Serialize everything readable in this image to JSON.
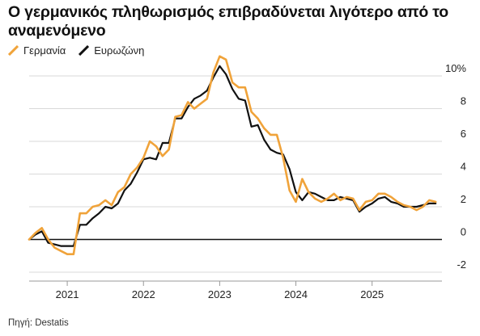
{
  "title": "Ο γερμανικός πληθωρισμός επιβραδύνεται λιγότερο από το αναμενόμενο",
  "source": "Πηγή: Destatis",
  "chart_data": {
    "type": "line",
    "title": "Ο γερμανικός πληθωρισμός επιβραδύνεται λιγότερο από το αναμενόμενο",
    "xlabel": "",
    "ylabel": "",
    "ylim": [
      -2,
      10
    ],
    "yticks": [
      -2,
      0,
      2,
      4,
      6,
      8,
      10
    ],
    "ytick_labels": [
      "-2",
      "0",
      "2",
      "4",
      "6",
      "8",
      "10%"
    ],
    "xlim": [
      "2020-07",
      "2025-12"
    ],
    "xtick_labels": [
      "2021",
      "2022",
      "2023",
      "2024",
      "2025"
    ],
    "grid": true,
    "legend_position": "top-left",
    "series": [
      {
        "name": "Γερμανία",
        "color": "#f0a33a",
        "points": [
          [
            "2020-07",
            0.0
          ],
          [
            "2020-08",
            0.4
          ],
          [
            "2020-09",
            0.7
          ],
          [
            "2020-10",
            0.0
          ],
          [
            "2020-11",
            -0.5
          ],
          [
            "2020-12",
            -0.7
          ],
          [
            "2021-01",
            -0.9
          ],
          [
            "2021-02",
            -0.9
          ],
          [
            "2021-03",
            1.6
          ],
          [
            "2021-04",
            1.6
          ],
          [
            "2021-05",
            2.0
          ],
          [
            "2021-06",
            2.1
          ],
          [
            "2021-07",
            2.4
          ],
          [
            "2021-08",
            2.1
          ],
          [
            "2021-09",
            2.9
          ],
          [
            "2021-10",
            3.2
          ],
          [
            "2021-11",
            4.0
          ],
          [
            "2021-12",
            4.4
          ],
          [
            "2022-01",
            5.0
          ],
          [
            "2022-02",
            6.0
          ],
          [
            "2022-03",
            5.7
          ],
          [
            "2022-04",
            5.1
          ],
          [
            "2022-05",
            5.5
          ],
          [
            "2022-06",
            7.5
          ],
          [
            "2022-07",
            7.6
          ],
          [
            "2022-08",
            8.4
          ],
          [
            "2022-09",
            8.0
          ],
          [
            "2022-10",
            8.3
          ],
          [
            "2022-11",
            8.6
          ],
          [
            "2022-12",
            10.2
          ],
          [
            "2023-01",
            11.2
          ],
          [
            "2023-02",
            11.0
          ],
          [
            "2023-03",
            9.6
          ],
          [
            "2023-04",
            9.3
          ],
          [
            "2023-05",
            9.3
          ],
          [
            "2023-06",
            7.8
          ],
          [
            "2023-07",
            7.4
          ],
          [
            "2023-08",
            6.8
          ],
          [
            "2023-09",
            6.4
          ],
          [
            "2023-10",
            6.4
          ],
          [
            "2023-11",
            5.0
          ],
          [
            "2023-12",
            3.0
          ],
          [
            "2024-01",
            2.3
          ],
          [
            "2024-02",
            3.7
          ],
          [
            "2024-03",
            2.9
          ],
          [
            "2024-04",
            2.5
          ],
          [
            "2024-05",
            2.3
          ],
          [
            "2024-06",
            2.5
          ],
          [
            "2024-07",
            2.8
          ],
          [
            "2024-08",
            2.4
          ],
          [
            "2024-09",
            2.6
          ],
          [
            "2024-10",
            2.5
          ],
          [
            "2024-11",
            1.8
          ],
          [
            "2024-12",
            2.3
          ],
          [
            "2025-01",
            2.4
          ],
          [
            "2025-02",
            2.8
          ],
          [
            "2025-03",
            2.8
          ],
          [
            "2025-04",
            2.6
          ],
          [
            "2025-05",
            2.3
          ],
          [
            "2025-06",
            2.1
          ],
          [
            "2025-07",
            2.0
          ],
          [
            "2025-08",
            1.8
          ],
          [
            "2025-09",
            2.0
          ],
          [
            "2025-10",
            2.4
          ],
          [
            "2025-11",
            2.3
          ]
        ]
      },
      {
        "name": "Ευρωζώνη",
        "color": "#111111",
        "points": [
          [
            "2020-07",
            0.0
          ],
          [
            "2020-08",
            0.3
          ],
          [
            "2020-09",
            0.5
          ],
          [
            "2020-10",
            -0.2
          ],
          [
            "2020-11",
            -0.3
          ],
          [
            "2020-12",
            -0.4
          ],
          [
            "2021-01",
            -0.4
          ],
          [
            "2021-02",
            -0.4
          ],
          [
            "2021-03",
            0.9
          ],
          [
            "2021-04",
            0.9
          ],
          [
            "2021-05",
            1.3
          ],
          [
            "2021-06",
            1.6
          ],
          [
            "2021-07",
            2.0
          ],
          [
            "2021-08",
            1.9
          ],
          [
            "2021-09",
            2.2
          ],
          [
            "2021-10",
            3.0
          ],
          [
            "2021-11",
            3.4
          ],
          [
            "2021-12",
            4.1
          ],
          [
            "2022-01",
            4.9
          ],
          [
            "2022-02",
            5.0
          ],
          [
            "2022-03",
            4.9
          ],
          [
            "2022-04",
            5.9
          ],
          [
            "2022-05",
            5.9
          ],
          [
            "2022-06",
            7.4
          ],
          [
            "2022-07",
            7.4
          ],
          [
            "2022-08",
            8.1
          ],
          [
            "2022-09",
            8.6
          ],
          [
            "2022-10",
            8.8
          ],
          [
            "2022-11",
            9.1
          ],
          [
            "2022-12",
            9.9
          ],
          [
            "2023-01",
            10.6
          ],
          [
            "2023-02",
            10.1
          ],
          [
            "2023-03",
            9.2
          ],
          [
            "2023-04",
            8.6
          ],
          [
            "2023-05",
            8.5
          ],
          [
            "2023-06",
            6.9
          ],
          [
            "2023-07",
            7.0
          ],
          [
            "2023-08",
            6.1
          ],
          [
            "2023-09",
            5.5
          ],
          [
            "2023-10",
            5.3
          ],
          [
            "2023-11",
            5.2
          ],
          [
            "2023-12",
            4.3
          ],
          [
            "2024-01",
            2.9
          ],
          [
            "2024-02",
            2.4
          ],
          [
            "2024-03",
            2.9
          ],
          [
            "2024-04",
            2.8
          ],
          [
            "2024-05",
            2.6
          ],
          [
            "2024-06",
            2.4
          ],
          [
            "2024-07",
            2.4
          ],
          [
            "2024-08",
            2.6
          ],
          [
            "2024-09",
            2.5
          ],
          [
            "2024-10",
            2.4
          ],
          [
            "2024-11",
            1.7
          ],
          [
            "2024-12",
            2.0
          ],
          [
            "2025-01",
            2.2
          ],
          [
            "2025-02",
            2.5
          ],
          [
            "2025-03",
            2.6
          ],
          [
            "2025-04",
            2.3
          ],
          [
            "2025-05",
            2.2
          ],
          [
            "2025-06",
            2.0
          ],
          [
            "2025-07",
            2.0
          ],
          [
            "2025-08",
            2.0
          ],
          [
            "2025-09",
            2.1
          ],
          [
            "2025-10",
            2.2
          ],
          [
            "2025-11",
            2.2
          ]
        ]
      }
    ]
  }
}
